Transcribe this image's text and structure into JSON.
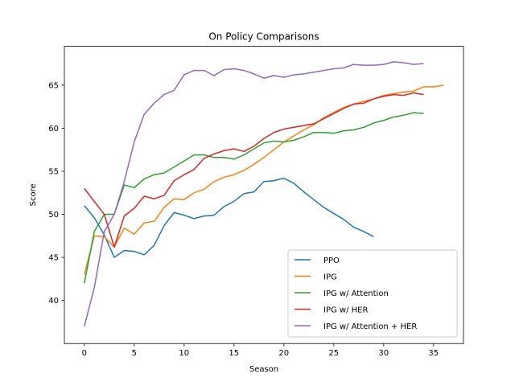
{
  "chart_data": {
    "type": "line",
    "title": "On Policy Comparisons",
    "xlabel": "Season",
    "ylabel": "Score",
    "xlim": [
      -2,
      38
    ],
    "ylim": [
      35,
      69.5
    ],
    "xticks": [
      0,
      5,
      10,
      15,
      20,
      25,
      30,
      35
    ],
    "yticks": [
      40,
      45,
      50,
      55,
      60,
      65
    ],
    "grid": false,
    "legend_position": "lower-right",
    "series": [
      {
        "name": "PPO",
        "color": "#1f77b4",
        "values": [
          51.0,
          49.6,
          47.6,
          45.0,
          45.8,
          45.7,
          45.3,
          46.4,
          48.7,
          50.2,
          49.9,
          49.5,
          49.8,
          49.9,
          50.9,
          51.5,
          52.4,
          52.6,
          53.8,
          53.9,
          54.2,
          53.6,
          52.6,
          51.7,
          50.8,
          50.1,
          49.4,
          48.5,
          48.0,
          47.4
        ]
      },
      {
        "name": "IPG",
        "color": "#ff7f0e",
        "values": [
          43.0,
          47.5,
          47.4,
          46.2,
          48.4,
          47.7,
          49.0,
          49.2,
          50.8,
          51.8,
          51.7,
          52.5,
          52.9,
          53.8,
          54.3,
          54.6,
          55.1,
          55.8,
          56.6,
          57.5,
          58.4,
          59.1,
          59.8,
          60.4,
          61.2,
          61.8,
          62.4,
          62.8,
          63.1,
          63.4,
          63.8,
          64.0,
          64.2,
          64.3,
          64.8,
          64.8,
          65.0
        ]
      },
      {
        "name": "IPG w/ Attention",
        "color": "#2ca02c",
        "values": [
          42.0,
          48.0,
          50.0,
          50.0,
          53.4,
          53.1,
          54.1,
          54.6,
          54.8,
          55.5,
          56.2,
          56.9,
          56.9,
          56.6,
          56.6,
          56.4,
          56.9,
          57.6,
          58.3,
          58.5,
          58.4,
          58.6,
          59.0,
          59.5,
          59.5,
          59.4,
          59.7,
          59.8,
          60.1,
          60.6,
          60.9,
          61.3,
          61.5,
          61.8,
          61.7
        ]
      },
      {
        "name": "IPG w/ HER",
        "color": "#d62728",
        "values": [
          53.0,
          51.5,
          50.0,
          46.2,
          49.8,
          50.7,
          52.1,
          51.8,
          52.2,
          53.9,
          54.6,
          55.2,
          56.5,
          57.0,
          57.4,
          57.6,
          57.3,
          57.9,
          58.8,
          59.5,
          59.9,
          60.1,
          60.3,
          60.5,
          61.1,
          61.7,
          62.3,
          62.8,
          62.9,
          63.4,
          63.7,
          63.9,
          63.8,
          64.1,
          63.9
        ]
      },
      {
        "name": "IPG w/ Attention + HER",
        "color": "#9467bd",
        "values": [
          37.0,
          41.5,
          48.0,
          50.0,
          53.8,
          58.4,
          61.6,
          62.9,
          63.9,
          64.4,
          66.2,
          66.7,
          66.7,
          66.1,
          66.8,
          66.9,
          66.7,
          66.3,
          65.8,
          66.1,
          65.9,
          66.2,
          66.3,
          66.5,
          66.7,
          66.9,
          67.0,
          67.4,
          67.3,
          67.3,
          67.4,
          67.7,
          67.6,
          67.4,
          67.5
        ]
      }
    ]
  }
}
